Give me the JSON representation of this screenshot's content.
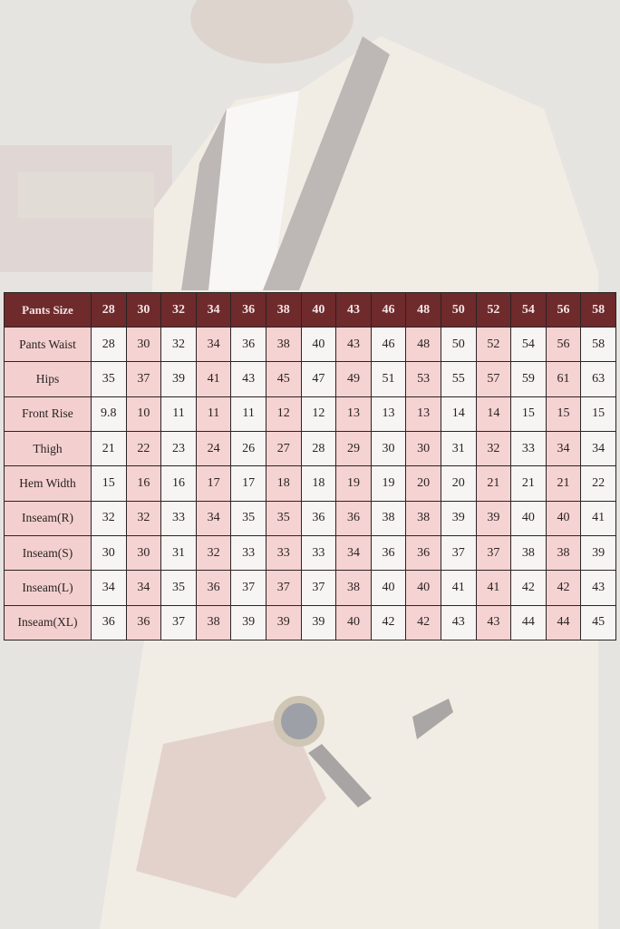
{
  "colors": {
    "header": "#6f2a2c",
    "shaded": "#f5d3d2",
    "plain": "#f6f5f3"
  },
  "table": {
    "header_label": "Pants Size",
    "sizes": [
      "28",
      "30",
      "32",
      "34",
      "36",
      "38",
      "40",
      "43",
      "46",
      "48",
      "50",
      "52",
      "54",
      "56",
      "58"
    ],
    "rows": [
      {
        "label": "Pants Waist",
        "values": [
          "28",
          "30",
          "32",
          "34",
          "36",
          "38",
          "40",
          "43",
          "46",
          "48",
          "50",
          "52",
          "54",
          "56",
          "58"
        ]
      },
      {
        "label": "Hips",
        "values": [
          "35",
          "37",
          "39",
          "41",
          "43",
          "45",
          "47",
          "49",
          "51",
          "53",
          "55",
          "57",
          "59",
          "61",
          "63"
        ]
      },
      {
        "label": "Front Rise",
        "values": [
          "9.8",
          "10",
          "11",
          "11",
          "11",
          "12",
          "12",
          "13",
          "13",
          "13",
          "14",
          "14",
          "15",
          "15",
          "15"
        ]
      },
      {
        "label": "Thigh",
        "values": [
          "21",
          "22",
          "23",
          "24",
          "26",
          "27",
          "28",
          "29",
          "30",
          "30",
          "31",
          "32",
          "33",
          "34",
          "34"
        ]
      },
      {
        "label": "Hem Width",
        "values": [
          "15",
          "16",
          "16",
          "17",
          "17",
          "18",
          "18",
          "19",
          "19",
          "20",
          "20",
          "21",
          "21",
          "21",
          "22"
        ]
      },
      {
        "label": "Inseam(R)",
        "values": [
          "32",
          "32",
          "33",
          "34",
          "35",
          "35",
          "36",
          "36",
          "38",
          "38",
          "39",
          "39",
          "40",
          "40",
          "41"
        ]
      },
      {
        "label": "Inseam(S)",
        "values": [
          "30",
          "30",
          "31",
          "32",
          "33",
          "33",
          "33",
          "34",
          "36",
          "36",
          "37",
          "37",
          "38",
          "38",
          "39"
        ]
      },
      {
        "label": "Inseam(L)",
        "values": [
          "34",
          "34",
          "35",
          "36",
          "37",
          "37",
          "37",
          "38",
          "40",
          "40",
          "41",
          "41",
          "42",
          "42",
          "43"
        ]
      },
      {
        "label": "Inseam(XL)",
        "values": [
          "36",
          "36",
          "37",
          "38",
          "39",
          "39",
          "39",
          "40",
          "42",
          "42",
          "43",
          "43",
          "44",
          "44",
          "45"
        ]
      }
    ]
  }
}
